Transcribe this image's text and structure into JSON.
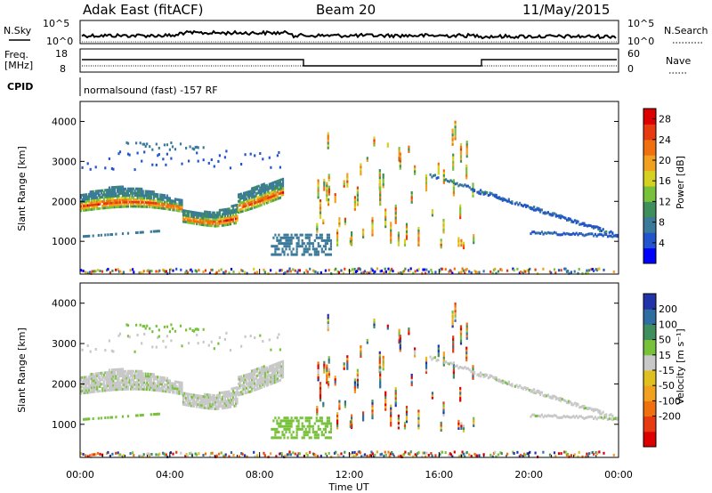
{
  "header": {
    "station": "Adak East (fitACF)",
    "beam": "Beam 20",
    "date": "11/May/2015"
  },
  "top_panels": {
    "nsky_label": "N.Sky",
    "nsky_ticks": [
      "10^5",
      "10^0"
    ],
    "nsearch_label": "N.Search",
    "nsearch_ticks": [
      "10^5",
      "10^0"
    ],
    "freq_label": "Freq.",
    "freq_unit": "[MHz]",
    "freq_ticks": [
      "18",
      "8"
    ],
    "nave_label": "Nave",
    "nave_ticks": [
      "60",
      "0"
    ],
    "cpid_label": "CPID",
    "cpid_text": "normalsound (fast) -157 RF"
  },
  "chart_data": [
    {
      "type": "heatmap",
      "name": "power",
      "ylabel": "Slant Range [km]",
      "yticks": [
        1000,
        2000,
        3000,
        4000
      ],
      "ylim": [
        180,
        4500
      ],
      "xlim": [
        0,
        24
      ],
      "colorbar_label": "Power [dB]",
      "colorbar_ticks": [
        4,
        8,
        12,
        16,
        20,
        24,
        28
      ],
      "colorbar_range": [
        0,
        30
      ],
      "colorbar_colors": [
        "#0000ff",
        "#2255cc",
        "#3b7a9a",
        "#3f8f5c",
        "#77c23a",
        "#d6d020",
        "#f2a020",
        "#f07010",
        "#e83a10",
        "#dd0000"
      ]
    },
    {
      "type": "heatmap",
      "name": "velocity",
      "ylabel": "Slant Range [km]",
      "yticks": [
        1000,
        2000,
        3000,
        4000
      ],
      "ylim": [
        180,
        4500
      ],
      "xlim": [
        0,
        24
      ],
      "xlabel": "Time UT",
      "xticks": [
        "00:00",
        "04:00",
        "08:00",
        "12:00",
        "16:00",
        "20:00",
        "00:00"
      ],
      "colorbar_label": "Velocity [m s⁻¹]",
      "colorbar_ticks": [
        200,
        100,
        50,
        15,
        -15,
        -50,
        -100,
        -200
      ],
      "colorbar_colors": [
        "#2233aa",
        "#2f6ea0",
        "#3f8f5c",
        "#77c23a",
        "#c8c8c8",
        "#e0c020",
        "#f2a020",
        "#f07010",
        "#e83a10",
        "#dd0000"
      ]
    }
  ]
}
